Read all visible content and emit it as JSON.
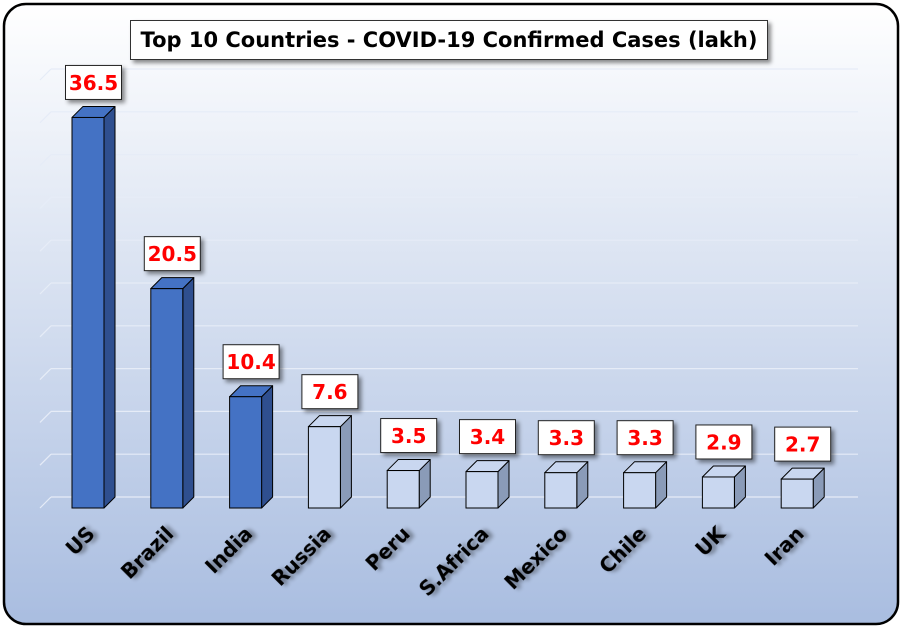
{
  "chart_data": {
    "type": "bar",
    "title": "Top 10 Countries - COVID-19 Confirmed Cases (lakh)",
    "xlabel": "",
    "ylabel": "",
    "categories": [
      "US",
      "Brazil",
      "India",
      "Russia",
      "Peru",
      "S.Africa",
      "Mexico",
      "Chile",
      "UK",
      "Iran"
    ],
    "values": [
      36.5,
      20.5,
      10.4,
      7.6,
      3.5,
      3.4,
      3.3,
      3.3,
      2.9,
      2.7
    ],
    "data_labels": [
      "36.5",
      "20.5",
      "10.4",
      "7.6",
      "3.5",
      "3.4",
      "3.3",
      "3.3",
      "2.9",
      "2.7"
    ],
    "ylim": [
      0,
      40
    ],
    "grid": true,
    "legend": "none",
    "colors": {
      "highlight_bar": "#4472c4",
      "highlight_bar_side": "#2f4f8f",
      "normal_bar": "#c9d7f0",
      "normal_bar_side": "#8a9bb8",
      "data_label_text": "#ff0000",
      "background_top": "#ffffff",
      "background_bottom": "#a9bde0"
    },
    "highlight_count": 3
  }
}
